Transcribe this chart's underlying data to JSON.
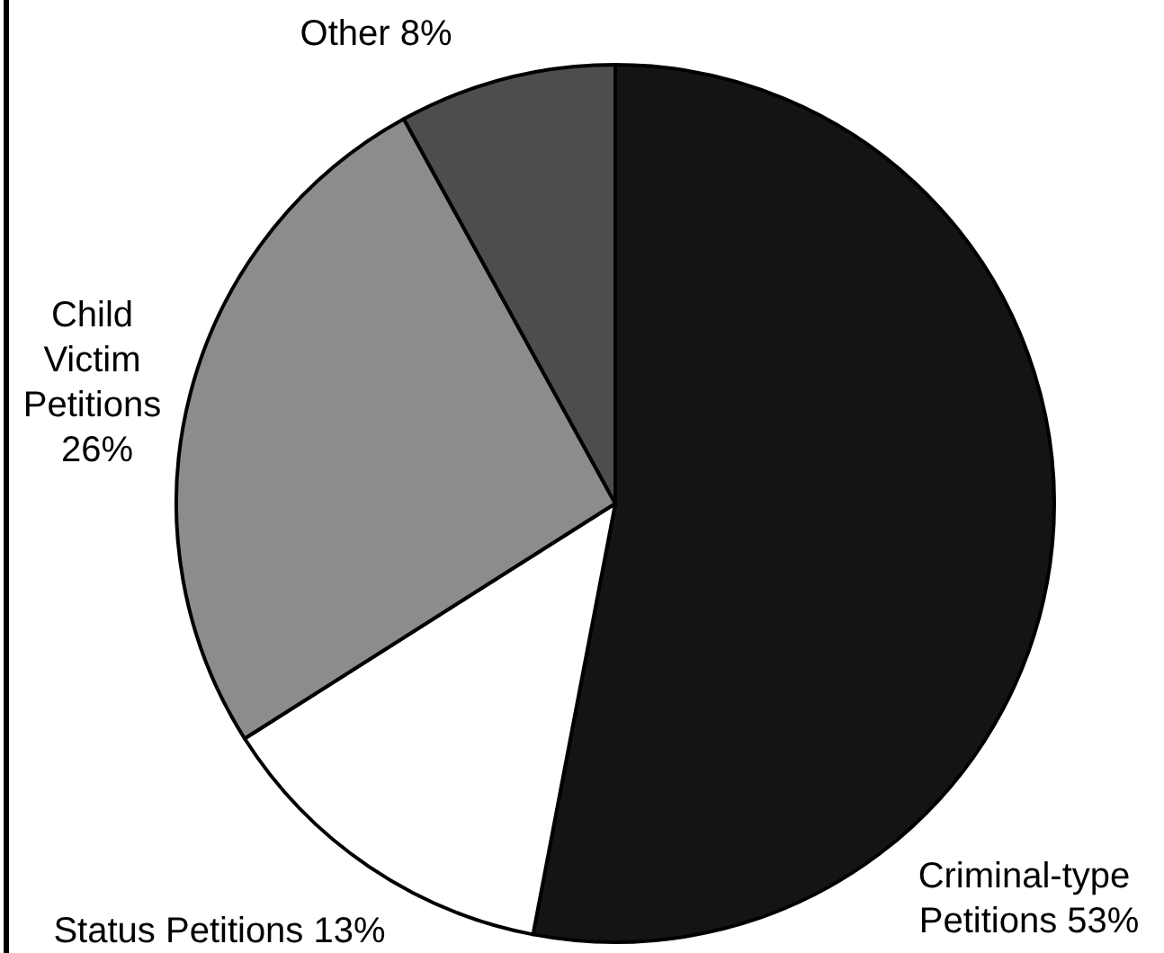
{
  "chart_data": {
    "type": "pie",
    "categories": [
      "Criminal-type Petitions",
      "Status Petitions",
      "Child Victim Petitions",
      "Other"
    ],
    "values": [
      53,
      13,
      26,
      8
    ],
    "value_labels": [
      "53%",
      "13%",
      "26%",
      "8%"
    ],
    "colors": [
      "#141414",
      "#ffffff",
      "#8c8c8c",
      "#4d4d4d"
    ]
  }
}
